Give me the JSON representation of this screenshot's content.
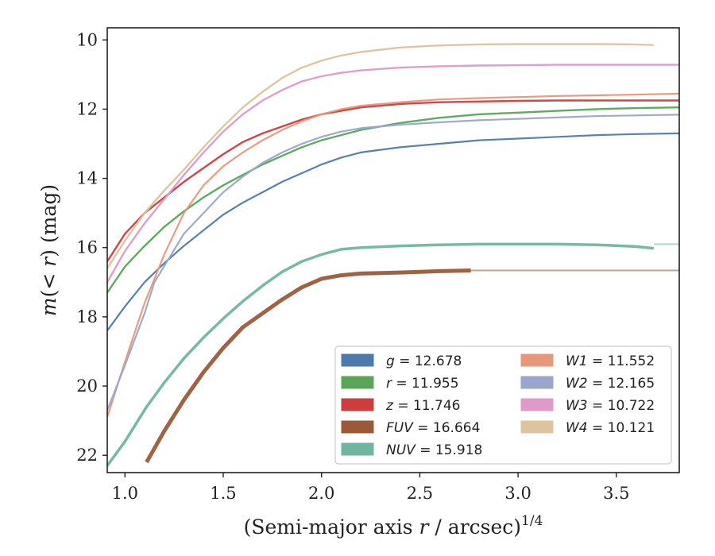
{
  "chart_data": {
    "type": "line",
    "xlabel": "(Semi-major axis r / arcsec)^1/4",
    "xlabel_parts": {
      "pre": "(Semi-major axis ",
      "var": "r",
      "post": " / arcsec)",
      "sup": "1/4"
    },
    "ylabel": "m(< r) (mag)",
    "ylabel_parts": {
      "var": "m",
      "mid": "(< ",
      "var2": "r",
      "post": ") (mag)"
    },
    "xlim": [
      0.91,
      3.82
    ],
    "ylim": [
      22.5,
      9.65
    ],
    "y_inverted": true,
    "xticks": [
      "1.0",
      "1.5",
      "2.0",
      "2.5",
      "3.0",
      "3.5"
    ],
    "yticks": [
      "10",
      "12",
      "14",
      "16",
      "18",
      "20",
      "22"
    ],
    "grid": false,
    "legend_position": "lower-right",
    "series": [
      {
        "name": "g",
        "value": "12.678",
        "color": "#4c7bab",
        "width": 2.2,
        "x": [
          0.91,
          1.0,
          1.1,
          1.2,
          1.3,
          1.4,
          1.5,
          1.6,
          1.7,
          1.8,
          1.9,
          2.0,
          2.1,
          2.2,
          2.4,
          2.6,
          2.8,
          3.0,
          3.2,
          3.4,
          3.6,
          3.82
        ],
        "y": [
          18.4,
          17.7,
          17.0,
          16.45,
          15.95,
          15.5,
          15.05,
          14.7,
          14.4,
          14.1,
          13.85,
          13.6,
          13.4,
          13.25,
          13.1,
          13.0,
          12.9,
          12.85,
          12.8,
          12.75,
          12.72,
          12.7
        ]
      },
      {
        "name": "r",
        "value": "11.955",
        "color": "#5aa55a",
        "width": 2.4,
        "x": [
          0.91,
          1.0,
          1.1,
          1.2,
          1.3,
          1.4,
          1.5,
          1.6,
          1.7,
          1.8,
          1.9,
          2.0,
          2.1,
          2.2,
          2.4,
          2.6,
          2.8,
          3.0,
          3.2,
          3.4,
          3.6,
          3.82
        ],
        "y": [
          17.3,
          16.55,
          15.95,
          15.4,
          14.95,
          14.55,
          14.2,
          13.9,
          13.6,
          13.35,
          13.1,
          12.9,
          12.75,
          12.6,
          12.4,
          12.25,
          12.15,
          12.1,
          12.05,
          12.0,
          11.97,
          11.95
        ]
      },
      {
        "name": "z",
        "value": "11.746",
        "color": "#cc3d3d",
        "width": 2.4,
        "x": [
          0.91,
          1.0,
          1.1,
          1.2,
          1.3,
          1.4,
          1.5,
          1.6,
          1.7,
          1.8,
          1.9,
          2.0,
          2.1,
          2.2,
          2.4,
          2.6,
          2.8,
          3.0,
          3.2,
          3.4,
          3.6,
          3.82
        ],
        "y": [
          16.4,
          15.6,
          15.0,
          14.55,
          14.1,
          13.7,
          13.3,
          12.95,
          12.7,
          12.5,
          12.3,
          12.15,
          12.05,
          11.95,
          11.85,
          11.8,
          11.78,
          11.76,
          11.75,
          11.75,
          11.75,
          11.75
        ]
      },
      {
        "name": "FUV",
        "value": "16.664",
        "color": "#9a5a3a",
        "width": 5,
        "x": [
          1.11,
          1.2,
          1.3,
          1.4,
          1.5,
          1.6,
          1.7,
          1.8,
          1.9,
          2.0,
          2.1,
          2.2,
          2.4,
          2.6,
          2.76
        ],
        "y": [
          22.2,
          21.3,
          20.4,
          19.6,
          18.9,
          18.3,
          17.9,
          17.5,
          17.15,
          16.9,
          16.8,
          16.75,
          16.72,
          16.68,
          16.66
        ]
      },
      {
        "name": "FUV tail",
        "value": "",
        "color": "#c19c8a",
        "width": 2,
        "x": [
          2.76,
          3.0,
          3.3,
          3.6,
          3.82
        ],
        "y": [
          16.66,
          16.66,
          16.66,
          16.66,
          16.66
        ]
      },
      {
        "name": "NUV",
        "value": "15.918",
        "color": "#6fb5a0",
        "width": 3.5,
        "x": [
          0.91,
          1.0,
          1.11,
          1.2,
          1.3,
          1.4,
          1.5,
          1.6,
          1.7,
          1.8,
          1.9,
          2.0,
          2.1,
          2.2,
          2.4,
          2.6,
          2.8,
          3.0,
          3.2,
          3.4,
          3.6,
          3.69
        ],
        "y": [
          22.3,
          21.6,
          20.6,
          19.9,
          19.2,
          18.6,
          18.05,
          17.55,
          17.1,
          16.7,
          16.4,
          16.2,
          16.05,
          16.0,
          15.95,
          15.92,
          15.9,
          15.9,
          15.9,
          15.92,
          15.97,
          16.02
        ]
      },
      {
        "name": "NUV tail",
        "value": "",
        "color": "#a8d6c6",
        "width": 2,
        "x": [
          3.69,
          3.82
        ],
        "y": [
          15.9,
          15.9
        ]
      },
      {
        "name": "W1",
        "value": "11.552",
        "color": "#e9977a",
        "width": 2.2,
        "x": [
          0.91,
          1.0,
          1.1,
          1.2,
          1.3,
          1.4,
          1.5,
          1.6,
          1.7,
          1.8,
          1.9,
          2.0,
          2.1,
          2.2,
          2.4,
          2.6,
          2.8,
          3.0,
          3.2,
          3.4,
          3.6,
          3.82
        ],
        "y": [
          20.9,
          19.3,
          17.6,
          16.2,
          15.0,
          14.2,
          13.65,
          13.25,
          12.9,
          12.6,
          12.35,
          12.15,
          12.0,
          11.9,
          11.8,
          11.72,
          11.68,
          11.65,
          11.62,
          11.6,
          11.58,
          11.55
        ]
      },
      {
        "name": "W2",
        "value": "12.165",
        "color": "#9aa6cb",
        "width": 2.2,
        "x": [
          0.91,
          1.0,
          1.1,
          1.15,
          1.3,
          1.4,
          1.5,
          1.6,
          1.7,
          1.8,
          1.9,
          2.0,
          2.1,
          2.2,
          2.4,
          2.6,
          2.8,
          3.0,
          3.2,
          3.4,
          3.6,
          3.82
        ],
        "y": [
          20.7,
          19.4,
          17.9,
          17.0,
          15.6,
          15.0,
          14.4,
          13.95,
          13.55,
          13.25,
          13.0,
          12.8,
          12.65,
          12.55,
          12.45,
          12.38,
          12.32,
          12.28,
          12.24,
          12.2,
          12.18,
          12.16
        ]
      },
      {
        "name": "W3",
        "value": "10.722",
        "color": "#de9ac8",
        "width": 2.4,
        "x": [
          0.91,
          1.0,
          1.1,
          1.2,
          1.3,
          1.4,
          1.5,
          1.6,
          1.7,
          1.8,
          1.9,
          2.0,
          2.1,
          2.2,
          2.4,
          2.6,
          2.8,
          3.0,
          3.2,
          3.4,
          3.6,
          3.82
        ],
        "y": [
          17.0,
          16.1,
          15.3,
          14.6,
          13.9,
          13.25,
          12.65,
          12.15,
          11.75,
          11.45,
          11.2,
          11.05,
          10.95,
          10.88,
          10.8,
          10.76,
          10.74,
          10.73,
          10.72,
          10.72,
          10.72,
          10.72
        ]
      },
      {
        "name": "W4",
        "value": "10.121",
        "color": "#ddc39e",
        "width": 2.4,
        "x": [
          0.91,
          1.0,
          1.1,
          1.2,
          1.3,
          1.4,
          1.5,
          1.6,
          1.7,
          1.8,
          1.9,
          2.0,
          2.1,
          2.2,
          2.4,
          2.6,
          2.8,
          3.0,
          3.2,
          3.4,
          3.6,
          3.69
        ],
        "y": [
          16.6,
          15.8,
          15.0,
          14.35,
          13.75,
          13.1,
          12.5,
          11.95,
          11.5,
          11.1,
          10.8,
          10.6,
          10.45,
          10.35,
          10.22,
          10.16,
          10.13,
          10.12,
          10.12,
          10.12,
          10.13,
          10.15
        ]
      }
    ],
    "legend": [
      {
        "name": "g",
        "value": "12.678",
        "color": "#4c7bab",
        "col": 0,
        "row": 0
      },
      {
        "name": "r",
        "value": "11.955",
        "color": "#5aa55a",
        "col": 0,
        "row": 1
      },
      {
        "name": "z",
        "value": "11.746",
        "color": "#cc3d3d",
        "col": 0,
        "row": 2
      },
      {
        "name": "FUV",
        "value": "16.664",
        "color": "#9a5a3a",
        "col": 0,
        "row": 3
      },
      {
        "name": "NUV",
        "value": "15.918",
        "color": "#6fb5a0",
        "col": 0,
        "row": 4
      },
      {
        "name": "W1",
        "value": "11.552",
        "color": "#e9977a",
        "col": 1,
        "row": 0
      },
      {
        "name": "W2",
        "value": "12.165",
        "color": "#9aa6cb",
        "col": 1,
        "row": 1
      },
      {
        "name": "W3",
        "value": "10.722",
        "color": "#de9ac8",
        "col": 1,
        "row": 2
      },
      {
        "name": "W4",
        "value": "10.121",
        "color": "#ddc39e",
        "col": 1,
        "row": 3
      }
    ]
  }
}
